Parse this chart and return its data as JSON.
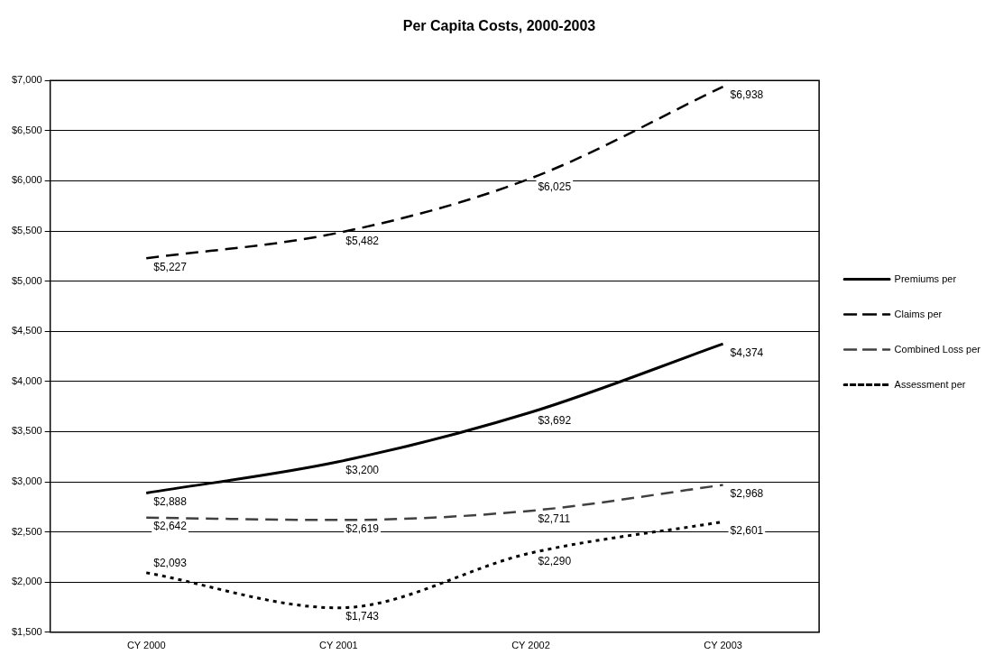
{
  "chart_data": {
    "type": "line",
    "title": "Per Capita Costs, 2000-2003",
    "categories": [
      "CY 2000",
      "CY 2001",
      "CY 2002",
      "CY 2003"
    ],
    "series": [
      {
        "name": "Premiums per",
        "color": "#000000",
        "line_style": "solid",
        "values": [
          2888,
          3200,
          3692,
          4374
        ],
        "value_labels": [
          "$2,888",
          "$3,200",
          "$3,692",
          "$4,374"
        ]
      },
      {
        "name": "Claims per",
        "color": "#000000",
        "line_style": "dashed",
        "values": [
          5227,
          5482,
          6025,
          6938
        ],
        "value_labels": [
          "$5,227",
          "$5,482",
          "$6,025",
          "$6,938"
        ]
      },
      {
        "name": "Combined Loss per",
        "color": "#404040",
        "line_style": "dashed",
        "values": [
          2642,
          2619,
          2711,
          2968
        ],
        "value_labels": [
          "$2,642",
          "$2,619",
          "$2,711",
          "$2,968"
        ]
      },
      {
        "name": "Assessment per",
        "color": "#000000",
        "line_style": "dotted",
        "values": [
          2093,
          1743,
          2290,
          2601
        ],
        "value_labels": [
          "$2,093",
          "$1,743",
          "$2,290",
          "$2,601"
        ]
      }
    ],
    "ylim": [
      1500,
      7000
    ],
    "yticks": [
      {
        "value": 1500,
        "label": "$1,500"
      },
      {
        "value": 2000,
        "label": "$2,000"
      },
      {
        "value": 2500,
        "label": "$2,500"
      },
      {
        "value": 3000,
        "label": "$3,000"
      },
      {
        "value": 3500,
        "label": "$3,500"
      },
      {
        "value": 4000,
        "label": "$4,000"
      },
      {
        "value": 4500,
        "label": "$4,500"
      },
      {
        "value": 5000,
        "label": "$5,000"
      },
      {
        "value": 5500,
        "label": "$5,500"
      },
      {
        "value": 6000,
        "label": "$6,000"
      },
      {
        "value": 6500,
        "label": "$6,500"
      },
      {
        "value": 7000,
        "label": "$7,000"
      }
    ],
    "grid": "y",
    "legend": "right",
    "marker": "none"
  }
}
